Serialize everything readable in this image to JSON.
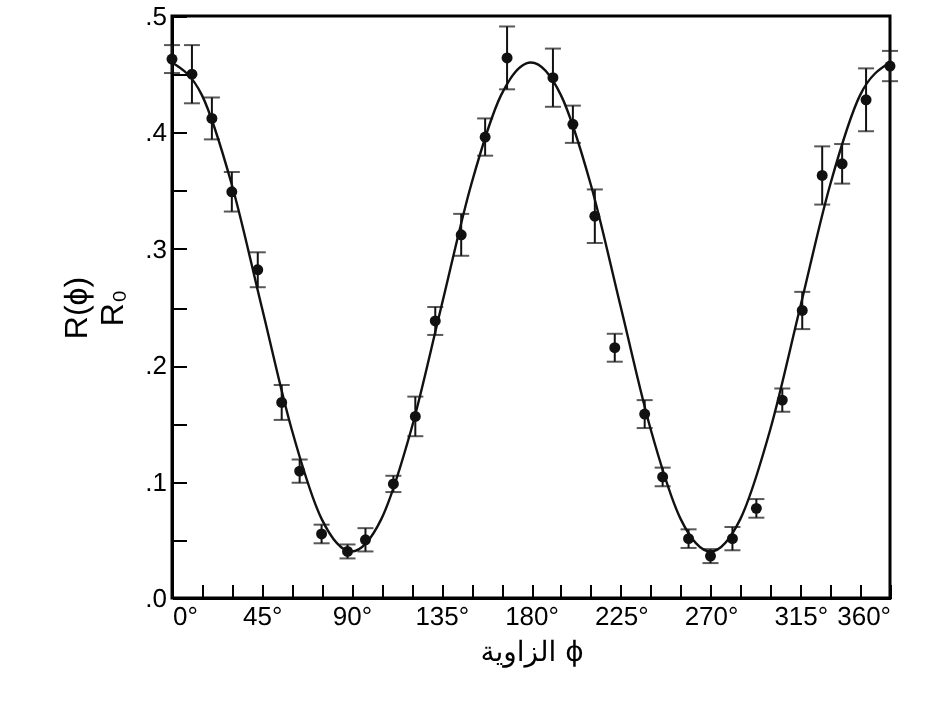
{
  "chart_data": {
    "type": "scatter",
    "xlabel": "الزاوية ϕ",
    "ylabel": "R(ϕ)\nR₀",
    "xlim": [
      0,
      360
    ],
    "ylim": [
      0,
      0.5
    ],
    "xticks": [
      {
        "value": 0,
        "label": "0°"
      },
      {
        "value": 15,
        "label": null
      },
      {
        "value": 30,
        "label": null
      },
      {
        "value": 45,
        "label": "45°"
      },
      {
        "value": 60,
        "label": null
      },
      {
        "value": 75,
        "label": null
      },
      {
        "value": 90,
        "label": "90°"
      },
      {
        "value": 105,
        "label": null
      },
      {
        "value": 120,
        "label": null
      },
      {
        "value": 135,
        "label": "135°"
      },
      {
        "value": 150,
        "label": null
      },
      {
        "value": 165,
        "label": null
      },
      {
        "value": 180,
        "label": "180°"
      },
      {
        "value": 195,
        "label": null
      },
      {
        "value": 210,
        "label": null
      },
      {
        "value": 225,
        "label": "225°"
      },
      {
        "value": 240,
        "label": null
      },
      {
        "value": 255,
        "label": null
      },
      {
        "value": 270,
        "label": "270°"
      },
      {
        "value": 285,
        "label": null
      },
      {
        "value": 300,
        "label": null
      },
      {
        "value": 315,
        "label": "315°"
      },
      {
        "value": 330,
        "label": null
      },
      {
        "value": 345,
        "label": null
      },
      {
        "value": 360,
        "label": "360°"
      }
    ],
    "yticks": [
      {
        "value": 0,
        "label": ".0"
      },
      {
        "value": 0.05,
        "label": null
      },
      {
        "value": 0.1,
        "label": ".1"
      },
      {
        "value": 0.15,
        "label": null
      },
      {
        "value": 0.2,
        "label": ".2"
      },
      {
        "value": 0.25,
        "label": null
      },
      {
        "value": 0.3,
        "label": ".3"
      },
      {
        "value": 0.35,
        "label": null
      },
      {
        "value": 0.4,
        "label": ".4"
      },
      {
        "value": 0.45,
        "label": null
      },
      {
        "value": 0.5,
        "label": ".5"
      }
    ],
    "grid": false,
    "series": [
      {
        "color": "#111111",
        "marker": "circle",
        "x": [
          0,
          10,
          20,
          30,
          43,
          55,
          64,
          75,
          88,
          97,
          111,
          122,
          132,
          145,
          157,
          168,
          191,
          201,
          212,
          222,
          237,
          246,
          259,
          270,
          281,
          293,
          306,
          316,
          326,
          336,
          348,
          360
        ],
        "values": [
          0.463,
          0.45,
          0.412,
          0.349,
          0.282,
          0.168,
          0.109,
          0.055,
          0.04,
          0.05,
          0.098,
          0.156,
          0.238,
          0.312,
          0.396,
          0.464,
          0.447,
          0.407,
          0.328,
          0.215,
          0.158,
          0.104,
          0.051,
          0.036,
          0.051,
          0.077,
          0.17,
          0.247,
          0.363,
          0.373,
          0.428,
          0.457
        ],
        "errors": [
          0.012,
          0.025,
          0.018,
          0.017,
          0.015,
          0.015,
          0.01,
          0.008,
          0.006,
          0.01,
          0.007,
          0.017,
          0.012,
          0.018,
          0.016,
          0.027,
          0.025,
          0.016,
          0.023,
          0.012,
          0.012,
          0.008,
          0.008,
          0.006,
          0.01,
          0.008,
          0.01,
          0.016,
          0.025,
          0.017,
          0.027,
          0.013
        ]
      },
      {
        "type": "line",
        "color": "#111111",
        "marker": "none",
        "line_style": "solid",
        "x": [
          0,
          15,
          30,
          45,
          60,
          75,
          90,
          105,
          120,
          135,
          150,
          165,
          180,
          195,
          210,
          225,
          240,
          255,
          270,
          285,
          300,
          315,
          330,
          345,
          360
        ],
        "values": [
          0.46,
          0.432,
          0.355,
          0.25,
          0.145,
          0.068,
          0.04,
          0.068,
          0.145,
          0.25,
          0.355,
          0.432,
          0.46,
          0.432,
          0.355,
          0.25,
          0.145,
          0.068,
          0.04,
          0.068,
          0.145,
          0.25,
          0.355,
          0.432,
          0.46
        ]
      }
    ]
  }
}
